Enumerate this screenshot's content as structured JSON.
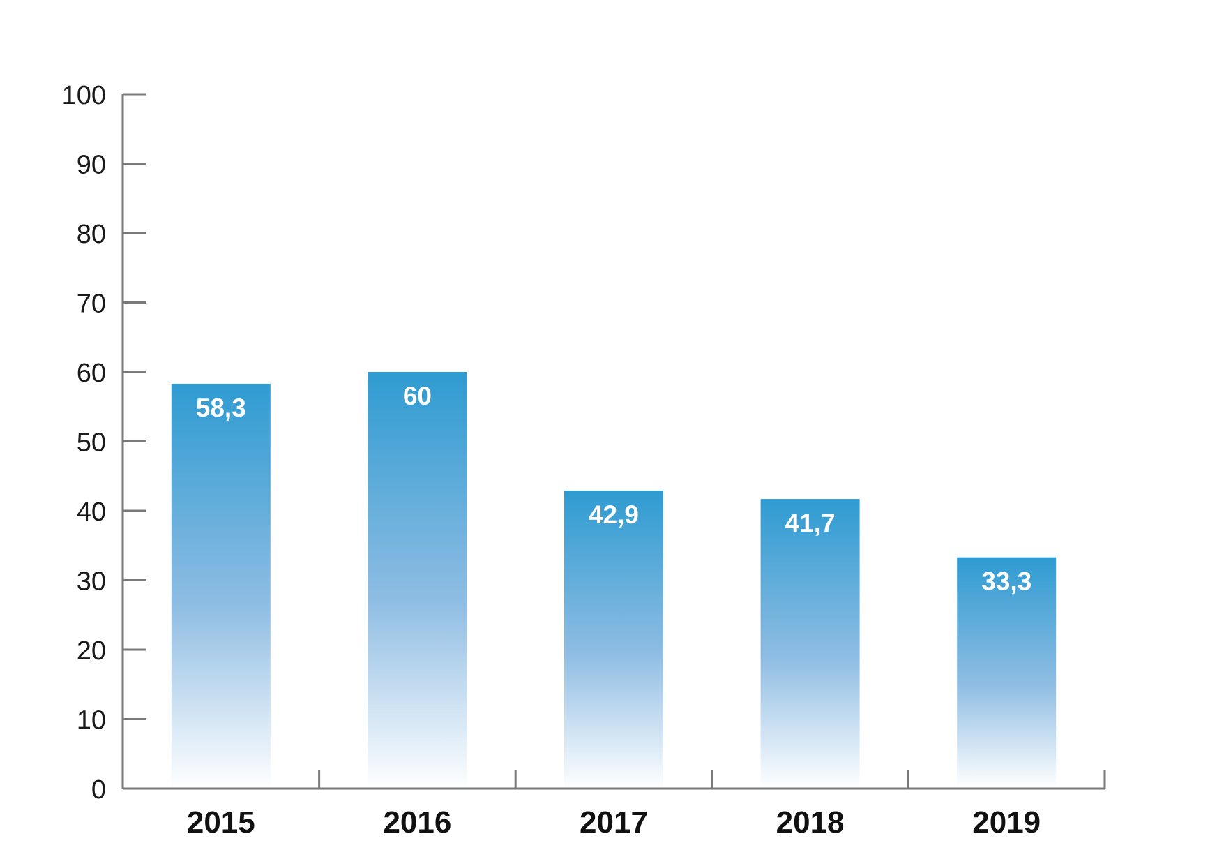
{
  "chart_data": {
    "type": "bar",
    "title": "",
    "xlabel": "",
    "ylabel": "",
    "categories": [
      "2015",
      "2016",
      "2017",
      "2018",
      "2019"
    ],
    "values": [
      58.3,
      60,
      42.9,
      41.7,
      33.3
    ],
    "data_labels": [
      "58,3",
      "60",
      "42,9",
      "41,7",
      "33,3"
    ],
    "ylim": [
      0,
      100
    ],
    "yticks": [
      0,
      10,
      20,
      30,
      40,
      50,
      60,
      70,
      80,
      90,
      100
    ],
    "ytick_labels": [
      "0",
      "10",
      "20",
      "30",
      "40",
      "50",
      "60",
      "70",
      "80",
      "90",
      "100"
    ],
    "grid": false,
    "legend": "none",
    "colors": {
      "bar_top": "#2e9bd1",
      "bar_bottom": "#ffffff",
      "axis": "#7a7a7a",
      "data_label": "#ffffff"
    }
  }
}
